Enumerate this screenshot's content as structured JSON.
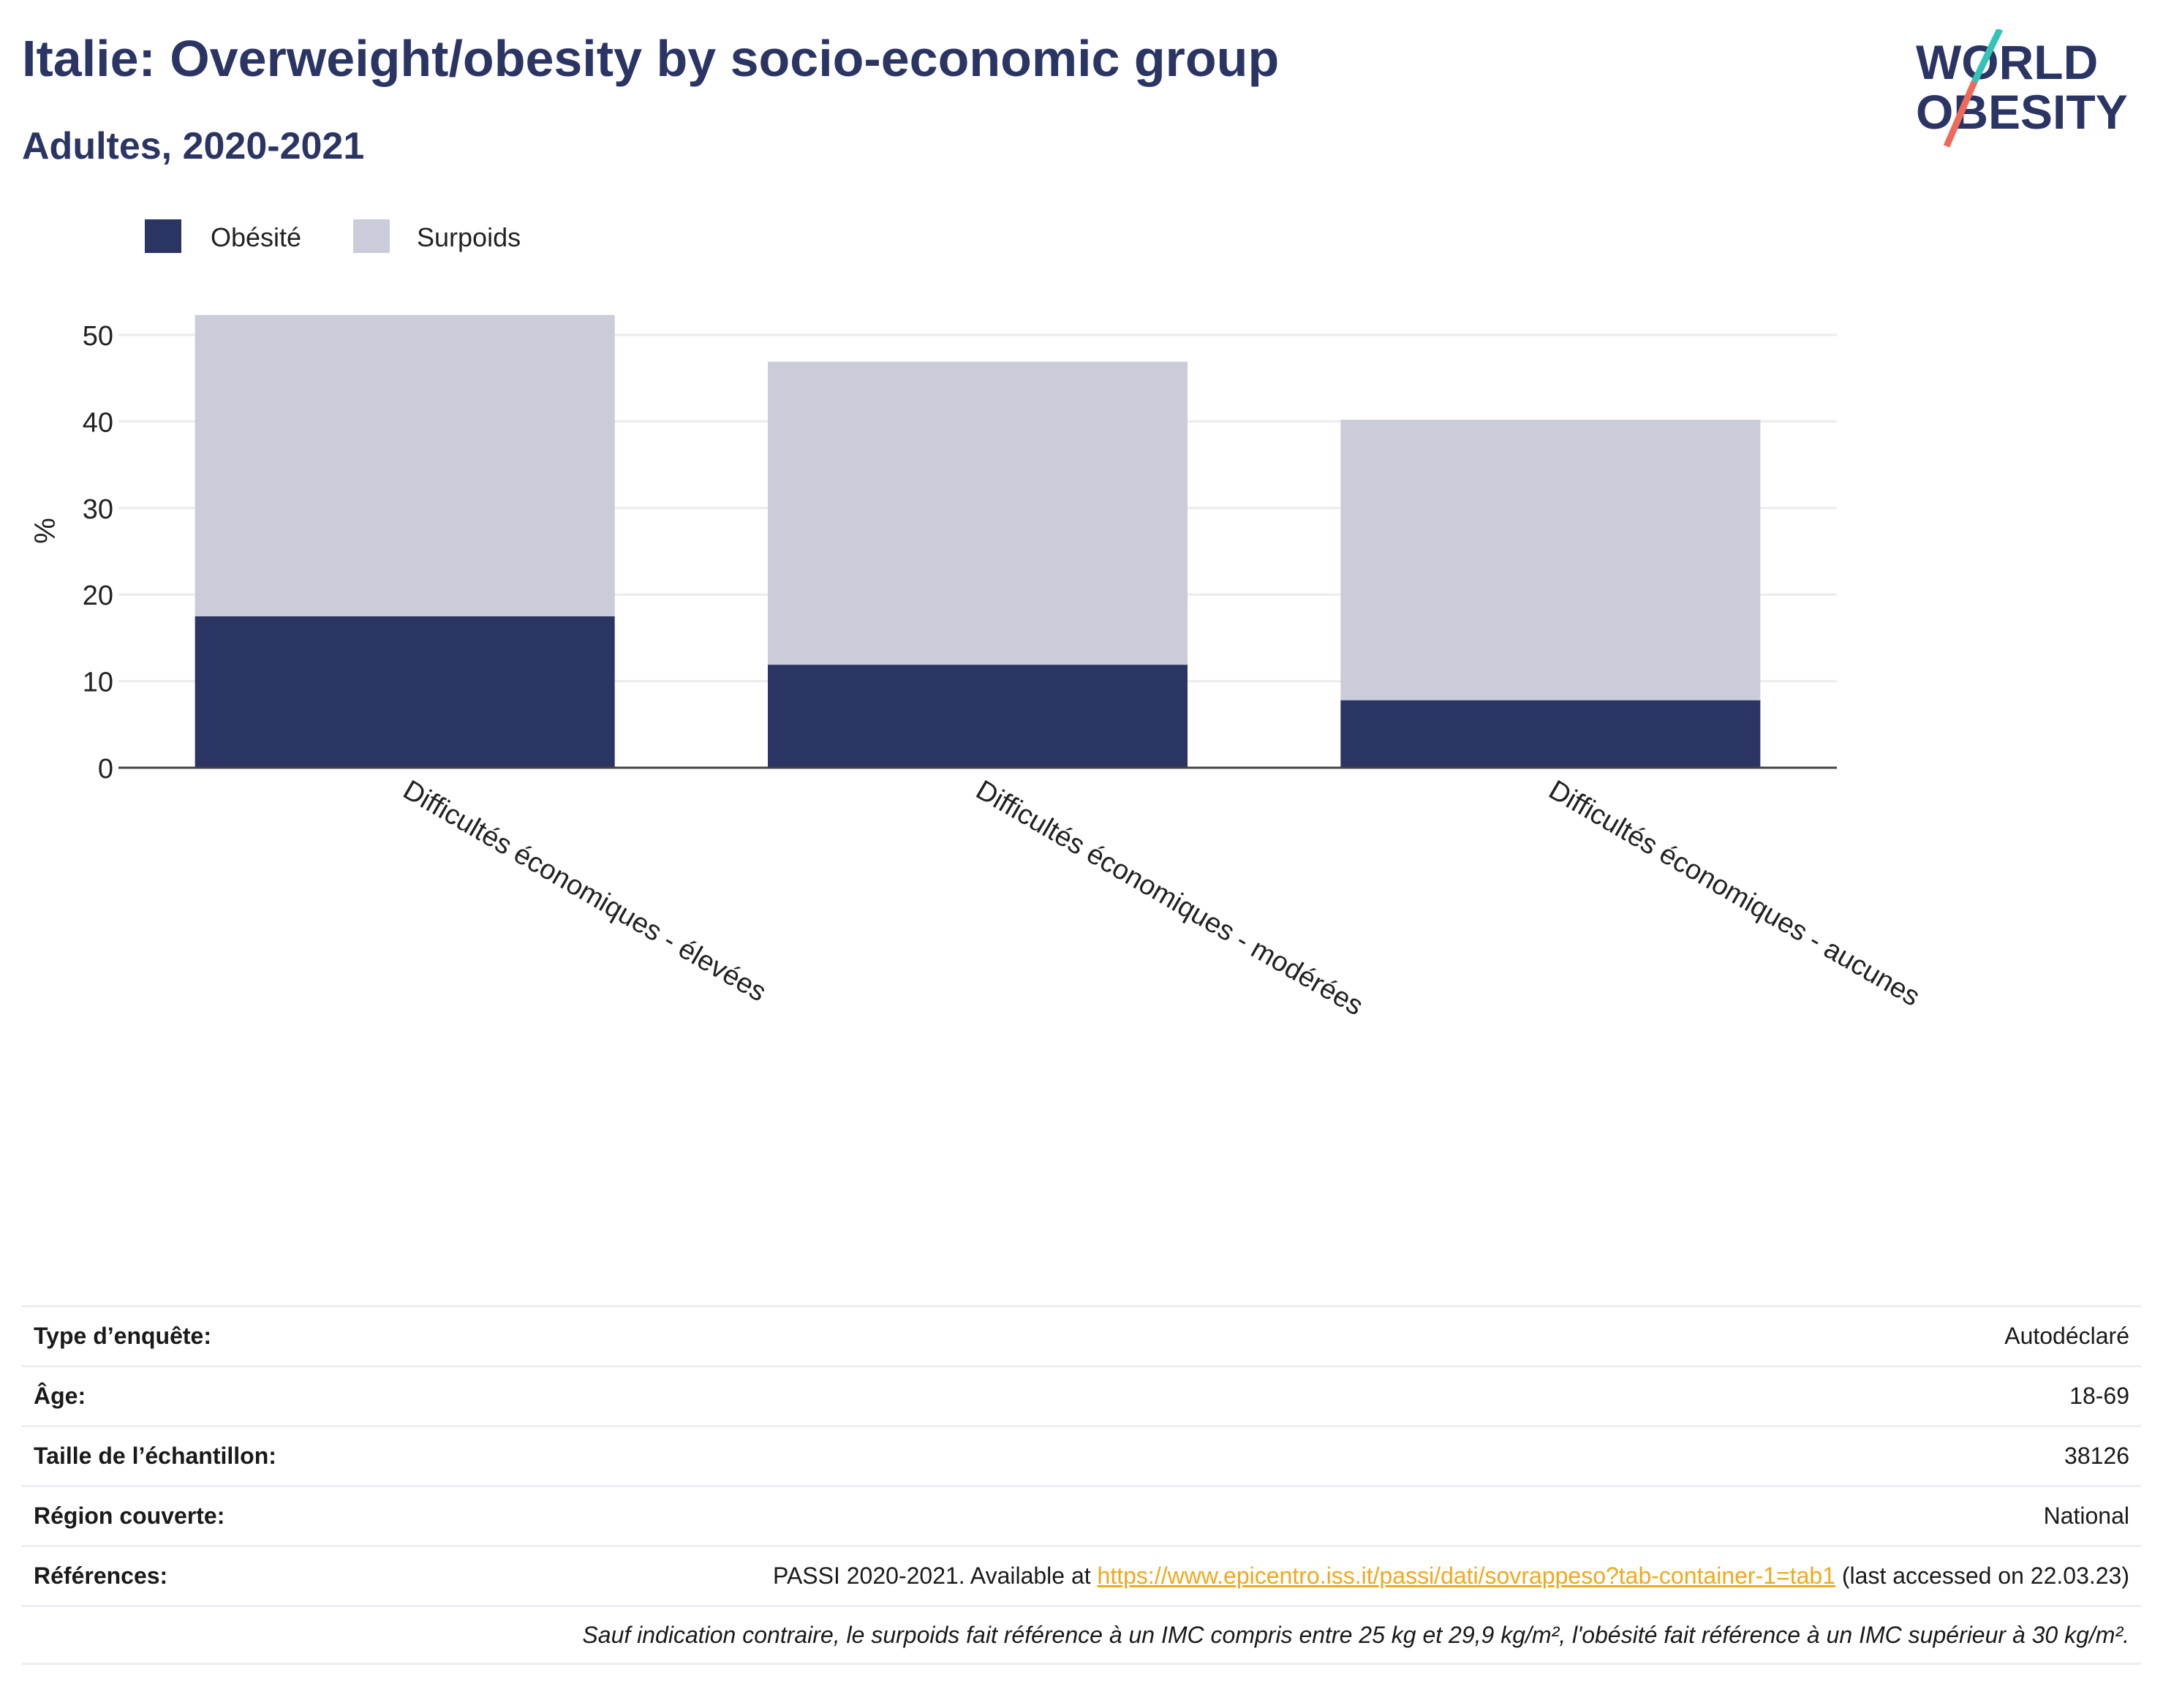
{
  "header": {
    "title": "Italie: Overweight/obesity by socio-economic group",
    "subtitle": "Adultes, 2020-2021"
  },
  "logo": {
    "line1": "WORLD",
    "line2": "OBESITY"
  },
  "colors": {
    "obesity": "#2b3563",
    "overweight": "#cacdd9",
    "accent": "#2b3563",
    "link": "#f0a91b",
    "logo_teal": "#35c2b8",
    "logo_coral": "#ee6a5b"
  },
  "chart_data": {
    "type": "bar",
    "stacked": true,
    "categories": [
      "Difficultés économiques - élevées",
      "Difficultés économiques - modérées",
      "Difficultés économiques - aucunes"
    ],
    "series": [
      {
        "name": "Obésité",
        "values": [
          17.5,
          11.9,
          7.8
        ]
      },
      {
        "name": "Surpoids",
        "values": [
          34.8,
          35.0,
          32.4
        ]
      }
    ],
    "ylabel": "%",
    "ylim": [
      0,
      55
    ],
    "yticks": [
      0,
      10,
      20,
      30,
      40,
      50
    ],
    "grid": true,
    "legend": "top-left"
  },
  "meta": {
    "survey_type_label": "Type d’enquête:",
    "survey_type_value": "Autodéclaré",
    "age_label": "Âge:",
    "age_value": "18-69",
    "sample_label": "Taille de l’échantillon:",
    "sample_value": "38126",
    "region_label": "Région couverte:",
    "region_value": "National",
    "references_label": "Références:",
    "references_prefix": "PASSI 2020-2021. Available at ",
    "references_link": "https://www.epicentro.iss.it/passi/dati/sovrappeso?tab-container-1=tab1",
    "references_suffix": " (last accessed on 22.03.23)",
    "footnote": "Sauf indication contraire, le surpoids fait référence à un IMC compris entre 25 kg et 29,9 kg/m², l'obésité fait référence à un IMC supérieur à 30 kg/m²."
  }
}
